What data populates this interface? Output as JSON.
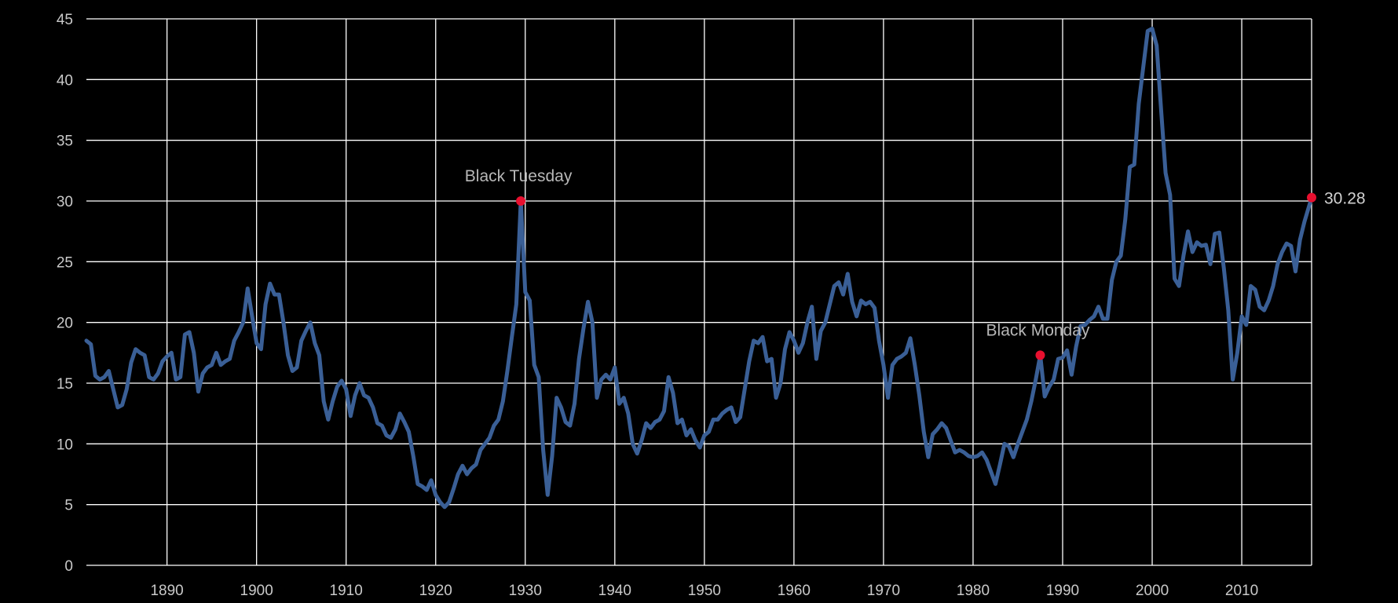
{
  "chart_data": {
    "type": "line",
    "title": "",
    "xlabel": "",
    "ylabel": "",
    "xlim": [
      1881,
      2017.8
    ],
    "ylim": [
      0,
      45
    ],
    "grid": true,
    "x_ticks": [
      1890,
      1900,
      1910,
      1920,
      1930,
      1940,
      1950,
      1960,
      1970,
      1980,
      1990,
      2000,
      2010
    ],
    "y_ticks": [
      0,
      5,
      10,
      15,
      20,
      25,
      30,
      35,
      40,
      45
    ],
    "colors": {
      "line": "#3a5f96",
      "marker": "#e8102f",
      "grid": "#ffffff",
      "background": "#000000"
    },
    "series": [
      {
        "x": [
          1881,
          1881.5,
          1882,
          1882.5,
          1883,
          1883.5,
          1884,
          1884.5,
          1885,
          1885.5,
          1886,
          1886.5,
          1887,
          1887.5,
          1888,
          1888.5,
          1889,
          1889.5,
          1890,
          1890.5,
          1891,
          1891.5,
          1892,
          1892.5,
          1893,
          1893.5,
          1894,
          1894.5,
          1895,
          1895.5,
          1896,
          1896.5,
          1897,
          1897.5,
          1898,
          1898.5,
          1899,
          1899.5,
          1900,
          1900.5,
          1901,
          1901.5,
          1902,
          1902.5,
          1903,
          1903.5,
          1904,
          1904.5,
          1905,
          1905.5,
          1906,
          1906.5,
          1907,
          1907.5,
          1908,
          1908.5,
          1909,
          1909.5,
          1910,
          1910.5,
          1911,
          1911.5,
          1912,
          1912.5,
          1913,
          1913.5,
          1914,
          1914.5,
          1915,
          1915.5,
          1916,
          1916.5,
          1917,
          1917.5,
          1918,
          1918.5,
          1919,
          1919.5,
          1920,
          1920.5,
          1921,
          1921.5,
          1922,
          1922.5,
          1923,
          1923.5,
          1924,
          1924.5,
          1925,
          1925.5,
          1926,
          1926.5,
          1927,
          1927.5,
          1928,
          1928.5,
          1929,
          1929.5,
          1930,
          1930.5,
          1931,
          1931.5,
          1932,
          1932.5,
          1933,
          1933.5,
          1934,
          1934.5,
          1935,
          1935.5,
          1936,
          1936.5,
          1937,
          1937.5,
          1938,
          1938.5,
          1939,
          1939.5,
          1940,
          1940.5,
          1941,
          1941.5,
          1942,
          1942.5,
          1943,
          1943.5,
          1944,
          1944.5,
          1945,
          1945.5,
          1946,
          1946.5,
          1947,
          1947.5,
          1948,
          1948.5,
          1949,
          1949.5,
          1950,
          1950.5,
          1951,
          1951.5,
          1952,
          1952.5,
          1953,
          1953.5,
          1954,
          1954.5,
          1955,
          1955.5,
          1956,
          1956.5,
          1957,
          1957.5,
          1958,
          1958.5,
          1959,
          1959.5,
          1960,
          1960.5,
          1961,
          1961.5,
          1962,
          1962.5,
          1963,
          1963.5,
          1964,
          1964.5,
          1965,
          1965.5,
          1966,
          1966.5,
          1967,
          1967.5,
          1968,
          1968.5,
          1969,
          1969.5,
          1970,
          1970.5,
          1971,
          1971.5,
          1972,
          1972.5,
          1973,
          1973.5,
          1974,
          1974.5,
          1975,
          1975.5,
          1976,
          1976.5,
          1977,
          1977.5,
          1978,
          1978.5,
          1979,
          1979.5,
          1980,
          1980.5,
          1981,
          1981.5,
          1982,
          1982.5,
          1983,
          1983.5,
          1984,
          1984.5,
          1985,
          1985.5,
          1986,
          1986.5,
          1987,
          1987.5,
          1988,
          1988.5,
          1989,
          1989.5,
          1990,
          1990.5,
          1991,
          1991.5,
          1992,
          1992.5,
          1993,
          1993.5,
          1994,
          1994.5,
          1995,
          1995.5,
          1996,
          1996.5,
          1997,
          1997.5,
          1998,
          1998.5,
          1999,
          1999.5,
          2000,
          2000.5,
          2001,
          2001.5,
          2002,
          2002.5,
          2003,
          2003.5,
          2004,
          2004.5,
          2005,
          2005.5,
          2006,
          2006.5,
          2007,
          2007.5,
          2008,
          2008.5,
          2009,
          2009.5,
          2010,
          2010.5,
          2011,
          2011.5,
          2012,
          2012.5,
          2013,
          2013.5,
          2014,
          2014.5,
          2015,
          2015.5,
          2016,
          2016.5,
          2017,
          2017.8
        ],
        "values": [
          18.5,
          18.2,
          15.6,
          15.3,
          15.5,
          16,
          14.5,
          13,
          13.2,
          14.5,
          16.7,
          17.8,
          17.5,
          17.3,
          15.5,
          15.3,
          15.8,
          16.8,
          17.2,
          17.5,
          15.3,
          15.5,
          19,
          19.2,
          17.5,
          14.3,
          15.8,
          16.3,
          16.5,
          17.5,
          16.5,
          16.8,
          17,
          18.5,
          19.2,
          20,
          22.8,
          20.5,
          18.3,
          17.8,
          21.5,
          23.2,
          22.3,
          22.3,
          20,
          17.3,
          16,
          16.3,
          18.5,
          19.3,
          20,
          18.3,
          17.3,
          13.5,
          12,
          13.5,
          14.7,
          15.2,
          14.5,
          12.3,
          14,
          15,
          14,
          13.8,
          13,
          11.7,
          11.5,
          10.7,
          10.5,
          11.2,
          12.5,
          11.8,
          11,
          9,
          6.7,
          6.5,
          6.2,
          7,
          5.8,
          5.2,
          4.8,
          5.2,
          6.3,
          7.5,
          8.2,
          7.5,
          8,
          8.3,
          9.5,
          10,
          10.5,
          11.5,
          12,
          13.5,
          16,
          18.8,
          21.5,
          30,
          22.5,
          21.8,
          16.5,
          15.5,
          9.5,
          5.8,
          9,
          13.8,
          13,
          11.8,
          11.5,
          13.3,
          17,
          19.5,
          21.7,
          20,
          13.8,
          15.3,
          15.7,
          15.3,
          16.3,
          13.3,
          13.8,
          12.5,
          10,
          9.2,
          10.3,
          11.7,
          11.3,
          11.8,
          12,
          12.7,
          15.5,
          14.2,
          11.7,
          12,
          10.7,
          11.2,
          10.3,
          9.7,
          10.7,
          11,
          12,
          12,
          12.5,
          12.8,
          13,
          11.8,
          12.2,
          14.5,
          16.8,
          18.5,
          18.3,
          18.8,
          16.8,
          17,
          13.8,
          15,
          17.8,
          19.2,
          18.5,
          17.5,
          18.3,
          20,
          21.3,
          17,
          19.3,
          20,
          21.5,
          23,
          23.3,
          22.3,
          24,
          21.7,
          20.5,
          21.8,
          21.5,
          21.7,
          21.2,
          18.5,
          16.5,
          13.8,
          16.5,
          17,
          17.2,
          17.5,
          18.7,
          16.5,
          14,
          11,
          8.9,
          10.8,
          11.2,
          11.7,
          11.3,
          10.3,
          9.3,
          9.5,
          9.3,
          9,
          8.9,
          9,
          9.3,
          8.7,
          7.7,
          6.7,
          8.3,
          10,
          9.8,
          8.9,
          10,
          11,
          12,
          13.5,
          15.3,
          17.3,
          13.9,
          14.7,
          15.3,
          17,
          17.1,
          17.7,
          15.7,
          18,
          19.7,
          19.8,
          20.2,
          20.5,
          21.3,
          20.3,
          20.3,
          23.5,
          25,
          25.5,
          28.5,
          32.8,
          33,
          38,
          41,
          44,
          44.2,
          42.8,
          37.5,
          32.3,
          30.5,
          23.6,
          23,
          25.5,
          27.5,
          25.8,
          26.6,
          26.3,
          26.4,
          24.8,
          27.3,
          27.4,
          24.5,
          21,
          15.3,
          17.5,
          20.5,
          19.8,
          23,
          22.7,
          21.3,
          21,
          21.8,
          23,
          24.8,
          25.8,
          26.5,
          26.3,
          24.2,
          26.8,
          28.3,
          30.28
        ]
      }
    ],
    "annotations": [
      {
        "label": "Black Tuesday",
        "x": 1929.5,
        "y": 30
      },
      {
        "label": "Black Monday",
        "x": 1987.5,
        "y": 17.3
      }
    ],
    "end_value_label": {
      "label": "30.28",
      "x": 2017.8,
      "y": 30.28
    }
  }
}
